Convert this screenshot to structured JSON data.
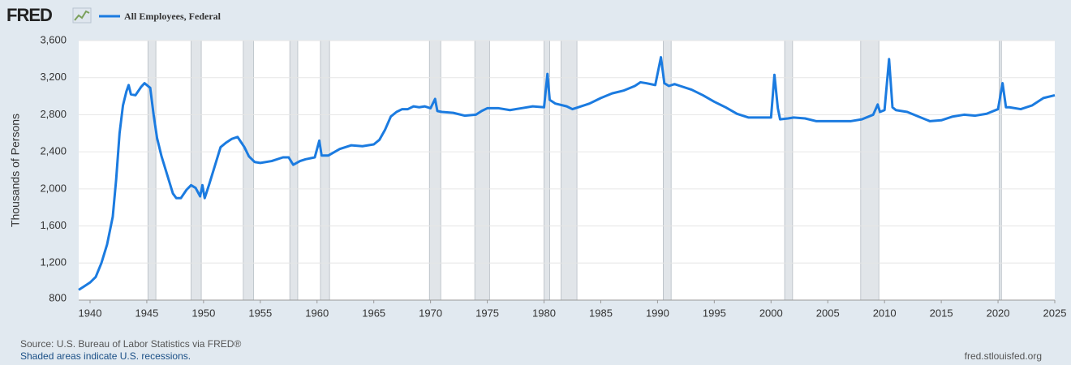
{
  "chart_data": {
    "type": "line",
    "logo": "FRED",
    "y_label": "Thousands of Persons",
    "source": "Source: U.S. Bureau of Labor Statistics via FRED®",
    "note": "Shaded areas indicate U.S. recessions.",
    "url": "fred.stlouisfed.org",
    "xlim": [
      1939,
      2025
    ],
    "xticks": [
      1940,
      1945,
      1950,
      1955,
      1960,
      1965,
      1970,
      1975,
      1980,
      1985,
      1990,
      1995,
      2000,
      2005,
      2010,
      2015,
      2020,
      2025
    ],
    "ylim": [
      800,
      3600
    ],
    "yticks": [
      800,
      {
        "value": 1200,
        "label": "1,200"
      },
      {
        "value": 1600,
        "label": "1,600"
      },
      {
        "value": 2000,
        "label": "2,000"
      },
      {
        "value": 2400,
        "label": "2,400"
      },
      {
        "value": 2800,
        "label": "2,800"
      },
      {
        "value": 3200,
        "label": "3,200"
      },
      {
        "value": 3600,
        "label": "3,600"
      }
    ],
    "grid": true,
    "recession_color": "#e1e5e9",
    "recessions": [
      {
        "start": 1945.1,
        "end": 1945.8
      },
      {
        "start": 1948.9,
        "end": 1949.8
      },
      {
        "start": 1953.5,
        "end": 1954.4
      },
      {
        "start": 1957.6,
        "end": 1958.3
      },
      {
        "start": 1960.3,
        "end": 1961.1
      },
      {
        "start": 1969.9,
        "end": 1970.9
      },
      {
        "start": 1973.9,
        "end": 1975.2
      },
      {
        "start": 1980.0,
        "end": 1980.5
      },
      {
        "start": 1981.5,
        "end": 1982.9
      },
      {
        "start": 1990.5,
        "end": 1991.2
      },
      {
        "start": 2001.2,
        "end": 2001.9
      },
      {
        "start": 2007.9,
        "end": 2009.5
      },
      {
        "start": 2020.1,
        "end": 2020.3
      }
    ],
    "series": [
      {
        "name": "All Employees, Federal",
        "color": "#1b7be0",
        "x": [
          1939.0,
          1939.5,
          1940.0,
          1940.5,
          1941.0,
          1941.5,
          1942.0,
          1942.3,
          1942.6,
          1942.9,
          1943.2,
          1943.4,
          1943.6,
          1944.0,
          1944.5,
          1944.8,
          1945.3,
          1945.6,
          1945.9,
          1946.3,
          1946.8,
          1947.3,
          1947.6,
          1948.0,
          1948.5,
          1948.9,
          1949.3,
          1949.7,
          1949.9,
          1950.1,
          1950.5,
          1951.0,
          1951.5,
          1952.0,
          1952.5,
          1953.0,
          1953.6,
          1954.0,
          1954.5,
          1955.0,
          1956.0,
          1957.0,
          1957.5,
          1957.9,
          1958.5,
          1959.0,
          1959.8,
          1960.2,
          1960.4,
          1961.0,
          1962.0,
          1963.0,
          1964.0,
          1965.0,
          1965.5,
          1966.0,
          1966.5,
          1967.0,
          1967.5,
          1968.0,
          1968.5,
          1969.0,
          1969.5,
          1970.0,
          1970.4,
          1970.6,
          1971.0,
          1972.0,
          1973.0,
          1974.0,
          1974.5,
          1975.0,
          1976.0,
          1977.0,
          1978.0,
          1979.0,
          1980.0,
          1980.3,
          1980.5,
          1981.0,
          1982.0,
          1982.5,
          1983.0,
          1984.0,
          1985.0,
          1986.0,
          1987.0,
          1988.0,
          1988.5,
          1989.0,
          1989.8,
          1990.3,
          1990.6,
          1991.0,
          1991.5,
          1992.0,
          1993.0,
          1994.0,
          1995.0,
          1996.0,
          1997.0,
          1998.0,
          1999.0,
          2000.0,
          2000.3,
          2000.6,
          2000.8,
          2001.5,
          2002.0,
          2003.0,
          2004.0,
          2005.0,
          2006.0,
          2007.0,
          2008.0,
          2009.0,
          2009.4,
          2009.6,
          2010.0,
          2010.4,
          2010.7,
          2011.0,
          2012.0,
          2013.0,
          2014.0,
          2015.0,
          2016.0,
          2017.0,
          2018.0,
          2019.0,
          2020.0,
          2020.4,
          2020.7,
          2021.0,
          2022.0,
          2023.0,
          2024.0,
          2025.0
        ],
        "values": [
          910,
          950,
          990,
          1050,
          1200,
          1400,
          1700,
          2100,
          2600,
          2900,
          3050,
          3120,
          3020,
          3010,
          3100,
          3140,
          3090,
          2800,
          2550,
          2350,
          2150,
          1950,
          1900,
          1900,
          1990,
          2040,
          2010,
          1920,
          2040,
          1900,
          2050,
          2250,
          2450,
          2500,
          2540,
          2560,
          2450,
          2350,
          2290,
          2280,
          2300,
          2340,
          2340,
          2260,
          2300,
          2320,
          2340,
          2520,
          2360,
          2360,
          2430,
          2470,
          2460,
          2480,
          2530,
          2640,
          2780,
          2830,
          2860,
          2860,
          2890,
          2880,
          2890,
          2870,
          2970,
          2840,
          2830,
          2820,
          2790,
          2800,
          2840,
          2870,
          2870,
          2850,
          2870,
          2890,
          2880,
          3240,
          2960,
          2920,
          2890,
          2860,
          2880,
          2920,
          2980,
          3030,
          3060,
          3110,
          3150,
          3140,
          3120,
          3420,
          3140,
          3110,
          3130,
          3110,
          3070,
          3010,
          2940,
          2880,
          2810,
          2770,
          2770,
          2770,
          3230,
          2870,
          2750,
          2760,
          2770,
          2760,
          2730,
          2730,
          2730,
          2730,
          2750,
          2800,
          2910,
          2830,
          2850,
          3400,
          2880,
          2850,
          2830,
          2780,
          2730,
          2740,
          2780,
          2800,
          2790,
          2810,
          2860,
          3140,
          2880,
          2880,
          2860,
          2900,
          2980,
          3010
        ]
      }
    ]
  }
}
